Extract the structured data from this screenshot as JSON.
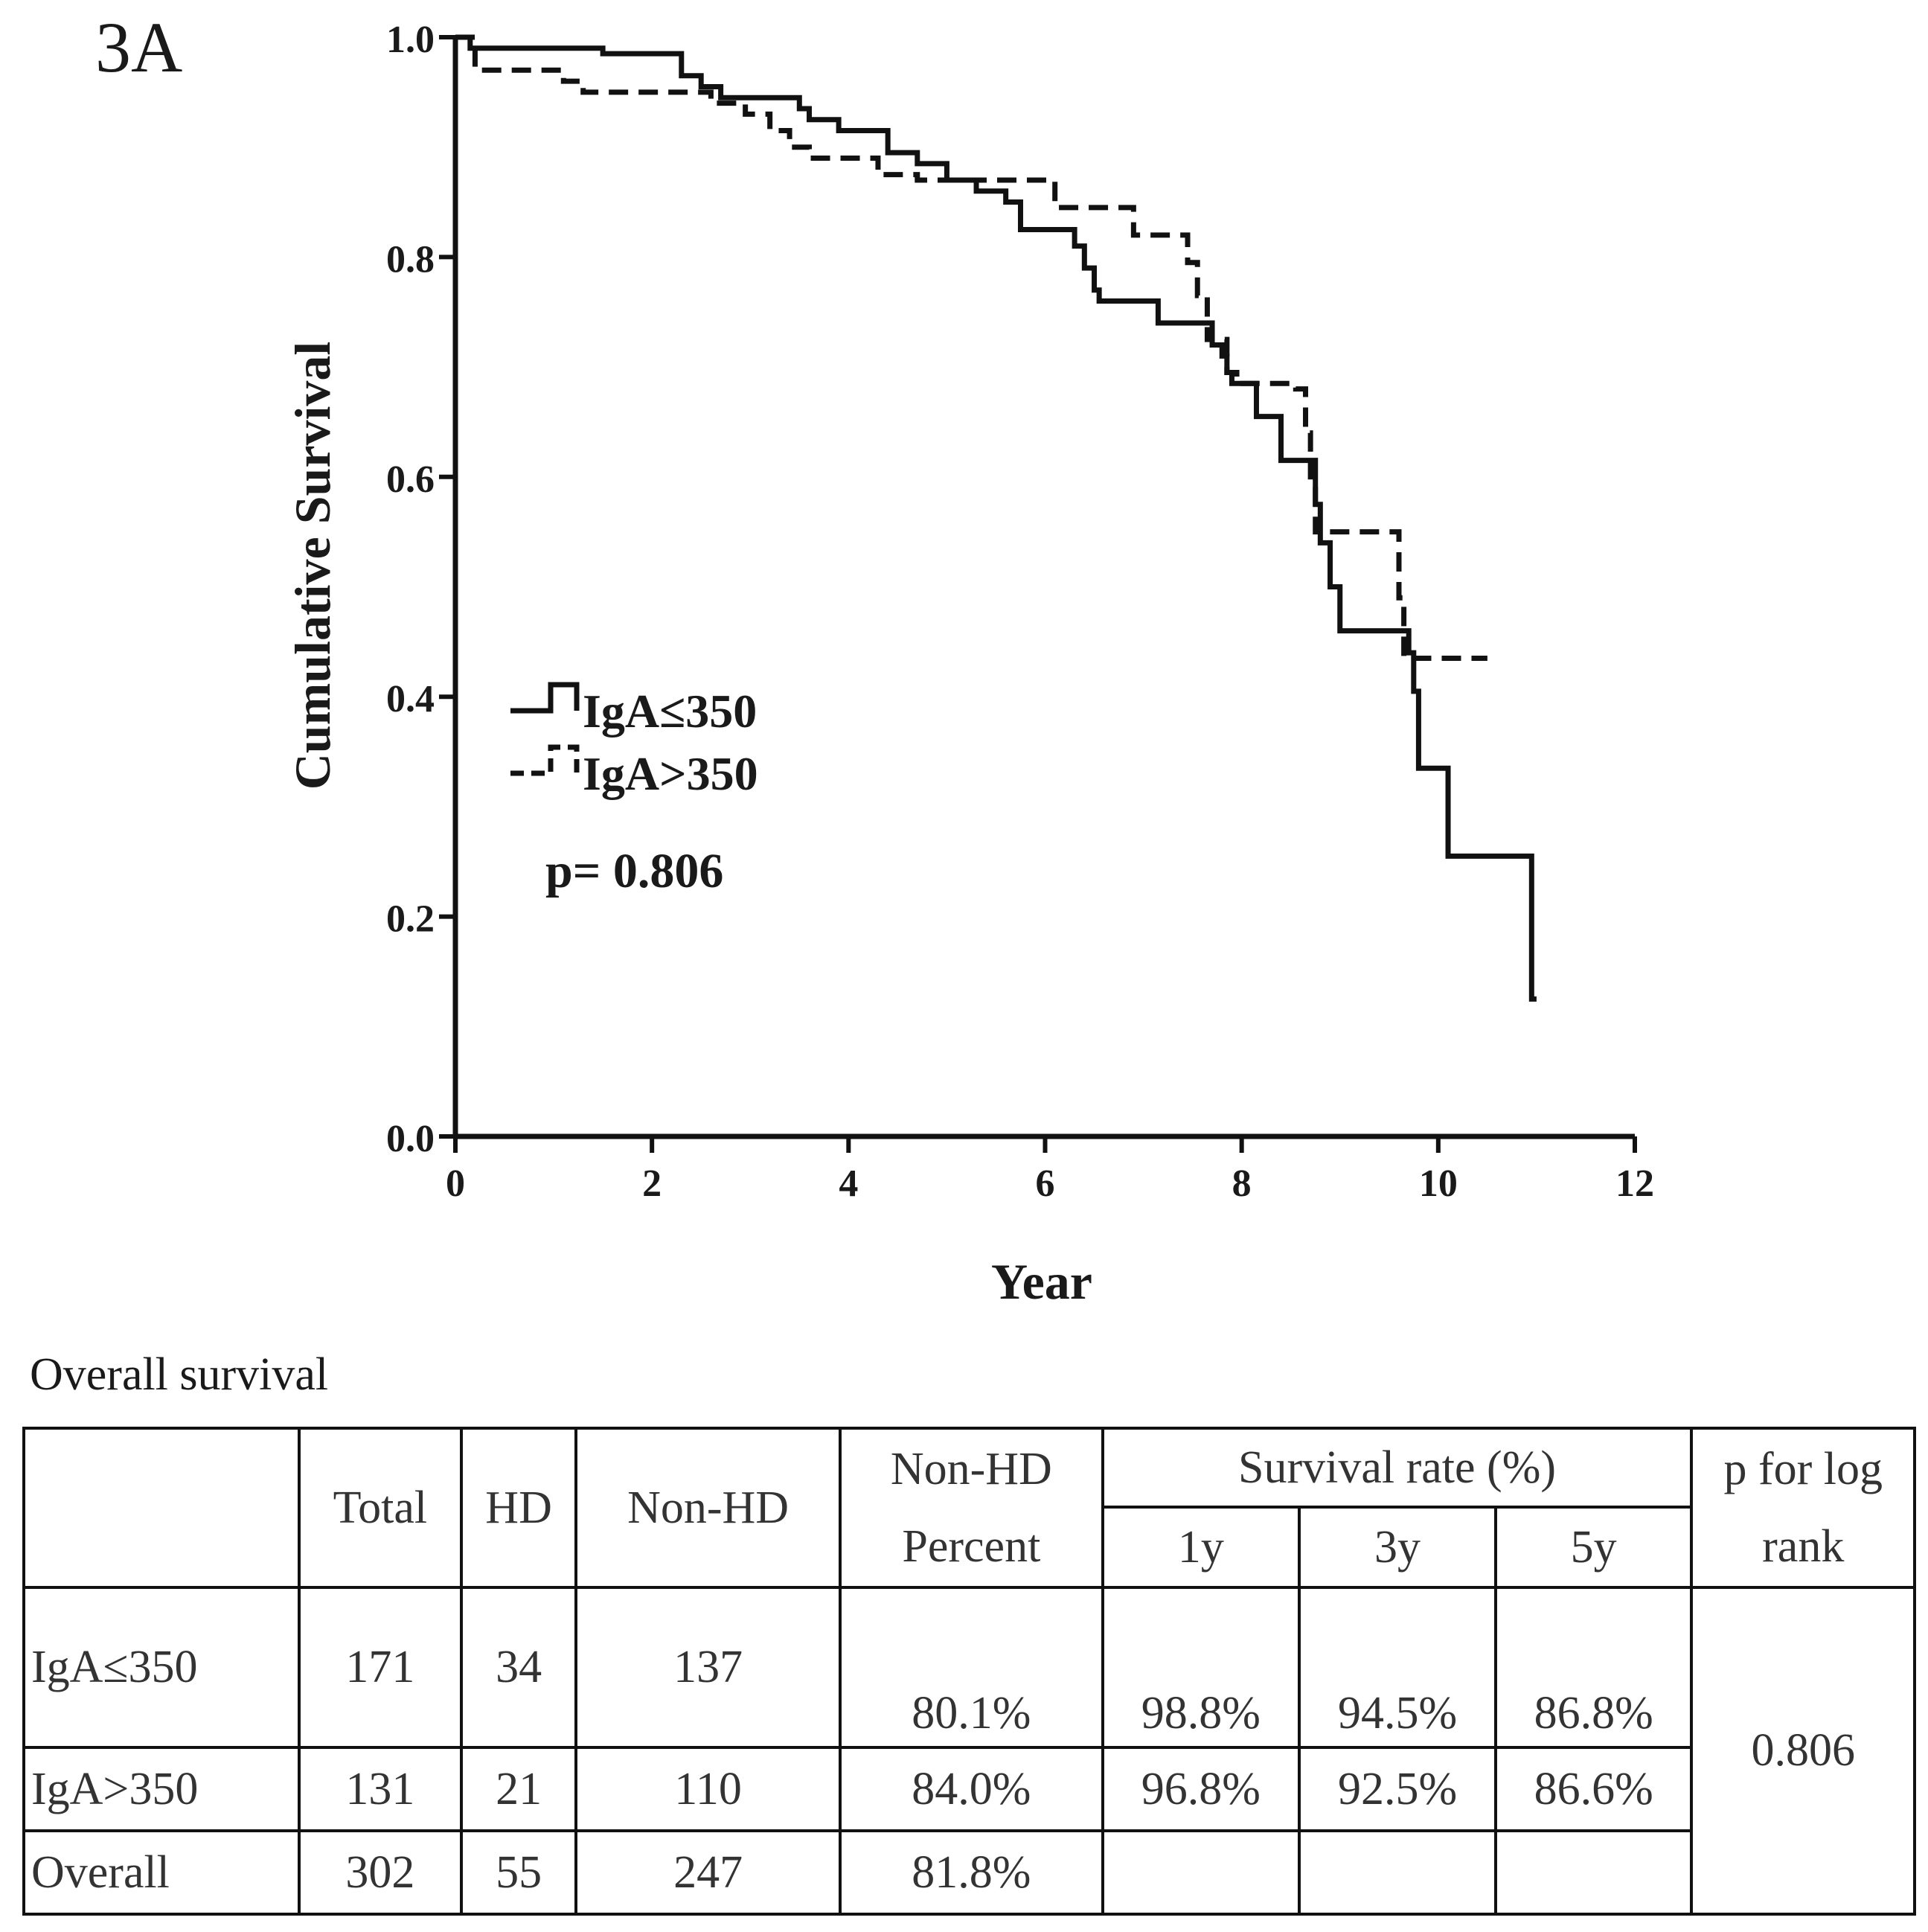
{
  "panel_label": "3A",
  "chart_data": {
    "type": "line",
    "subtype": "kaplan-meier",
    "title": "",
    "xlabel": "Year",
    "ylabel": "Cumulative Survival",
    "xlim": [
      0,
      12
    ],
    "ylim": [
      0.0,
      1.0
    ],
    "xticks": [
      0,
      2,
      4,
      6,
      8,
      10,
      12
    ],
    "xtick_labels": [
      "0",
      "2",
      "4",
      "6",
      "8",
      "10",
      "12"
    ],
    "yticks": [
      0.0,
      0.2,
      0.4,
      0.6,
      0.8,
      1.0
    ],
    "ytick_labels": [
      "0.0",
      "0.2",
      "0.4",
      "0.6",
      "0.8",
      "1.0"
    ],
    "grid": false,
    "legend_position": "middle-left",
    "annotation": "p= 0.806",
    "series": [
      {
        "name": "IgA≤350",
        "line_style": "solid",
        "steps": [
          [
            0,
            1.0
          ],
          [
            0.15,
            0.99
          ],
          [
            1.5,
            0.985
          ],
          [
            2.3,
            0.965
          ],
          [
            2.5,
            0.955
          ],
          [
            2.7,
            0.945
          ],
          [
            3.5,
            0.935
          ],
          [
            3.6,
            0.925
          ],
          [
            3.9,
            0.915
          ],
          [
            4.4,
            0.895
          ],
          [
            4.7,
            0.885
          ],
          [
            5.0,
            0.87
          ],
          [
            5.3,
            0.86
          ],
          [
            5.6,
            0.85
          ],
          [
            5.75,
            0.825
          ],
          [
            6.3,
            0.81
          ],
          [
            6.4,
            0.79
          ],
          [
            6.5,
            0.77
          ],
          [
            6.55,
            0.76
          ],
          [
            7.15,
            0.74
          ],
          [
            7.7,
            0.72
          ],
          [
            7.8,
            0.71
          ],
          [
            7.85,
            0.695
          ],
          [
            7.9,
            0.685
          ],
          [
            8.15,
            0.655
          ],
          [
            8.4,
            0.615
          ],
          [
            8.75,
            0.575
          ],
          [
            8.8,
            0.54
          ],
          [
            8.9,
            0.5
          ],
          [
            9.0,
            0.46
          ],
          [
            9.7,
            0.44
          ],
          [
            9.75,
            0.405
          ],
          [
            9.8,
            0.335
          ],
          [
            10.1,
            0.255
          ],
          [
            10.95,
            0.125
          ],
          [
            11.0,
            0.125
          ]
        ]
      },
      {
        "name": "IgA>350",
        "line_style": "dashed",
        "steps": [
          [
            0,
            1.0
          ],
          [
            0.2,
            0.97
          ],
          [
            1.1,
            0.96
          ],
          [
            1.3,
            0.95
          ],
          [
            2.6,
            0.94
          ],
          [
            2.95,
            0.93
          ],
          [
            3.2,
            0.915
          ],
          [
            3.4,
            0.9
          ],
          [
            3.6,
            0.89
          ],
          [
            4.3,
            0.875
          ],
          [
            4.7,
            0.87
          ],
          [
            6.1,
            0.845
          ],
          [
            6.9,
            0.82
          ],
          [
            7.45,
            0.795
          ],
          [
            7.55,
            0.765
          ],
          [
            7.65,
            0.725
          ],
          [
            7.85,
            0.695
          ],
          [
            7.95,
            0.685
          ],
          [
            8.55,
            0.68
          ],
          [
            8.65,
            0.64
          ],
          [
            8.7,
            0.6
          ],
          [
            8.75,
            0.55
          ],
          [
            9.6,
            0.49
          ],
          [
            9.65,
            0.435
          ],
          [
            10.5,
            0.435
          ]
        ]
      }
    ]
  },
  "table": {
    "caption": "Overall survival",
    "headers": {
      "total": "Total",
      "hd": "HD",
      "non_hd": "Non-HD",
      "non_hd_percent": "Non-HD Percent",
      "survival_rate": "Survival rate (%)",
      "y1": "1y",
      "y3": "3y",
      "y5": "5y",
      "p_log_rank": "p for log rank"
    },
    "rows": [
      {
        "label": "IgA≤350",
        "total": "171",
        "hd": "34",
        "non_hd": "137",
        "non_hd_percent": "80.1%",
        "y1": "98.8%",
        "y3": "94.5%",
        "y5": "86.8%"
      },
      {
        "label": "IgA>350",
        "total": "131",
        "hd": "21",
        "non_hd": "110",
        "non_hd_percent": "84.0%",
        "y1": "96.8%",
        "y3": "92.5%",
        "y5": "86.6%"
      },
      {
        "label": "Overall",
        "total": "302",
        "hd": "55",
        "non_hd": "247",
        "non_hd_percent": "81.8%",
        "y1": "",
        "y3": "",
        "y5": ""
      }
    ],
    "p_value": "0.806"
  }
}
